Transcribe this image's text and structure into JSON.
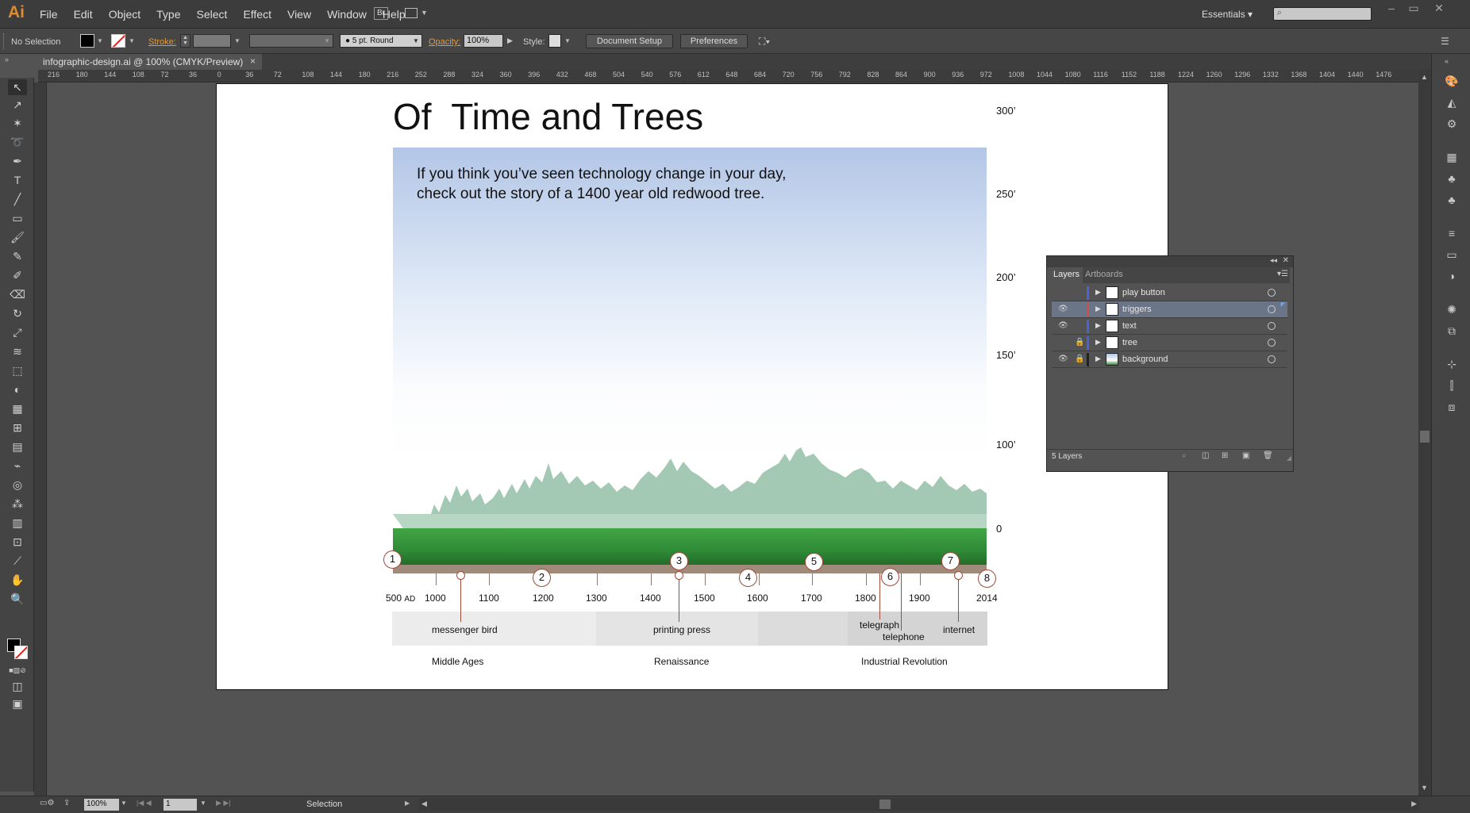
{
  "app": {
    "logo": "Ai",
    "workspace": "Essentials"
  },
  "menu": [
    "File",
    "Edit",
    "Object",
    "Type",
    "Select",
    "Effect",
    "View",
    "Window",
    "Help"
  ],
  "menu_extra": {
    "bridge": "Br"
  },
  "control": {
    "selection": "No Selection",
    "stroke_label": "Stroke:",
    "brush": "5 pt. Round",
    "opacity_label": "Opacity:",
    "opacity": "100%",
    "style_label": "Style:",
    "doc_setup": "Document Setup",
    "preferences": "Preferences"
  },
  "tab": {
    "title": "infographic-design.ai @ 100% (CMYK/Preview)",
    "close": "×"
  },
  "ruler_h": [
    "216",
    "180",
    "144",
    "108",
    "72",
    "36",
    "0",
    "36",
    "72",
    "108",
    "144",
    "180",
    "216",
    "252",
    "288",
    "324",
    "360",
    "396",
    "432",
    "468",
    "504",
    "540",
    "576",
    "612",
    "648",
    "684",
    "720",
    "756",
    "792",
    "828",
    "864",
    "900",
    "936",
    "972",
    "1008",
    "1044",
    "1080",
    "1116",
    "1152",
    "1188",
    "1224",
    "1260",
    "1296",
    "1332",
    "1368",
    "1404",
    "1440",
    "1476"
  ],
  "status": {
    "zoom": "100%",
    "page": "1",
    "tool": "Selection"
  },
  "artboard": {
    "title": "Of  Time and Trees",
    "intro_1": "If you think you’ve seen technology change in your day,",
    "intro_2": "check out the story of a 1400 year old redwood tree.",
    "heights": [
      "300’",
      "250’",
      "200’",
      "150’",
      "100’",
      "0"
    ],
    "years": [
      "500",
      "1000",
      "1100",
      "1200",
      "1300",
      "1400",
      "1500",
      "1600",
      "1700",
      "1800",
      "1900",
      "2014"
    ],
    "year_suffix": "AD",
    "markers": [
      "1",
      "2",
      "3",
      "4",
      "5",
      "6",
      "7",
      "8"
    ],
    "events": [
      "messenger bird",
      "printing press",
      "telegraph",
      "telephone",
      "internet"
    ],
    "eras": [
      "Middle Ages",
      "Renaissance",
      "Industrial Revolution"
    ]
  },
  "layers_panel": {
    "tabs": [
      "Layers",
      "Artboards"
    ],
    "layers": [
      {
        "name": "play button",
        "visible": false,
        "locked": false,
        "color": "#4a63d8"
      },
      {
        "name": "triggers",
        "visible": true,
        "locked": false,
        "color": "#d84a4a"
      },
      {
        "name": "text",
        "visible": true,
        "locked": false,
        "color": "#4a63d8"
      },
      {
        "name": "tree",
        "visible": false,
        "locked": true,
        "color": "#4a63d8"
      },
      {
        "name": "background",
        "visible": true,
        "locked": true,
        "color": "#222222"
      }
    ],
    "count": "5 Layers"
  },
  "colors": {
    "accent": "#e08a2e",
    "selected_row": "#6b7588",
    "marker": "#a04a3c",
    "grass": "#2f8a36",
    "forest": "#a3c9b4"
  }
}
